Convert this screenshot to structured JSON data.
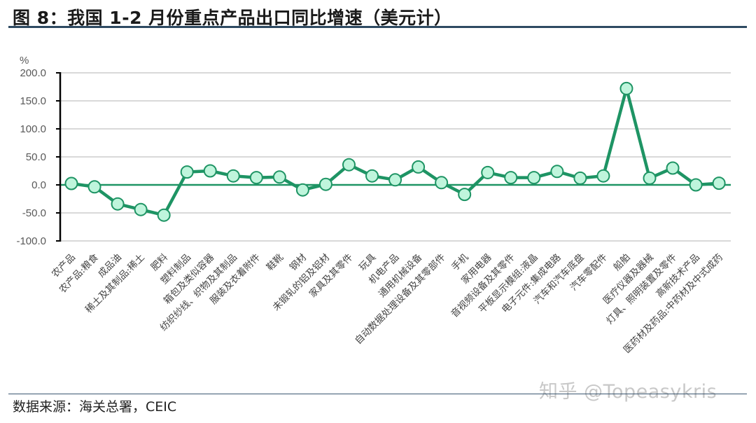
{
  "header": {
    "title": "图 8：我国 1-2 月份重点产品出口同比增速（美元计）"
  },
  "footer": {
    "source": "数据来源：海关总署，CEIC",
    "watermark": "知乎 @Topeasykris"
  },
  "colors": {
    "line": "#1e9464",
    "marker_fill": "#bff5dc",
    "marker_stroke": "#1e9464",
    "zero_line": "#1e9464",
    "grid": "#d9d9d9",
    "axis": "#000000",
    "title_rule": "#2e4a62"
  },
  "chart_data": {
    "type": "line",
    "title": "我国 1-2 月份重点产品出口同比增速（美元计）",
    "xlabel": "",
    "ylabel": "%",
    "ylim": [
      -100,
      200
    ],
    "yticks": [
      200,
      150,
      100,
      50,
      0,
      -50,
      -100
    ],
    "ytick_labels": [
      "200.0",
      "150.0",
      "100.0",
      "50.0",
      "0.0",
      "-50.0",
      "-100.0"
    ],
    "grid": true,
    "legend": null,
    "categories": [
      "农产品",
      "农产品:粮食",
      "成品油",
      "稀土及其制品:稀土",
      "肥料",
      "塑料制品",
      "箱包及类似容器",
      "纺织纱线、织物及其制品",
      "服装及衣着附件",
      "鞋靴",
      "钢材",
      "未锻轧的铝及铝材",
      "家具及其零件",
      "玩具",
      "机电产品",
      "通用机械设备",
      "自动数据处理设备及其零部件",
      "手机",
      "家用电器",
      "音视频设备及其零件",
      "平板显示模组:液晶",
      "电子元件:集成电路",
      "汽车和汽车底盘",
      "汽车零配件",
      "船舶",
      "医疗仪器及器械",
      "灯具、照明装置及零件",
      "高新技术产品",
      "医药材及药品:中药材及中式成药"
    ],
    "series": [
      {
        "name": "出口同比增速",
        "values": [
          2.5,
          -3.5,
          -34,
          -44,
          -54,
          23,
          25,
          16,
          13,
          14,
          -9,
          1,
          36,
          16,
          9,
          32,
          4,
          -17,
          22,
          13,
          13,
          24,
          12,
          16,
          172,
          12,
          30,
          0,
          3
        ]
      }
    ]
  }
}
